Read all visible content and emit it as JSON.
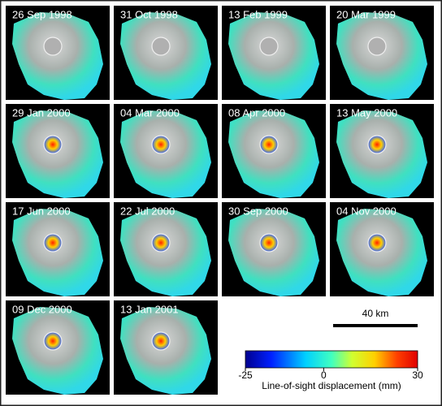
{
  "panels": [
    "26 Sep 1998",
    "31 Oct 1998",
    "13 Feb 1999",
    "20 Mar 1999",
    "29 Jan 2000",
    "04 Mar 2000",
    "08 Apr 2000",
    "13 May 2000",
    "17 Jun 2000",
    "22 Jul 2000",
    "30 Sep 2000",
    "04 Nov 2000",
    "09 Dec 2000",
    "13 Jan 2001"
  ],
  "scale_bar": "40 km",
  "colorbar": {
    "label": "Line-of-sight displacement (mm)",
    "lim": [
      -25,
      30
    ],
    "ticks": [
      -25,
      0,
      30
    ]
  }
}
